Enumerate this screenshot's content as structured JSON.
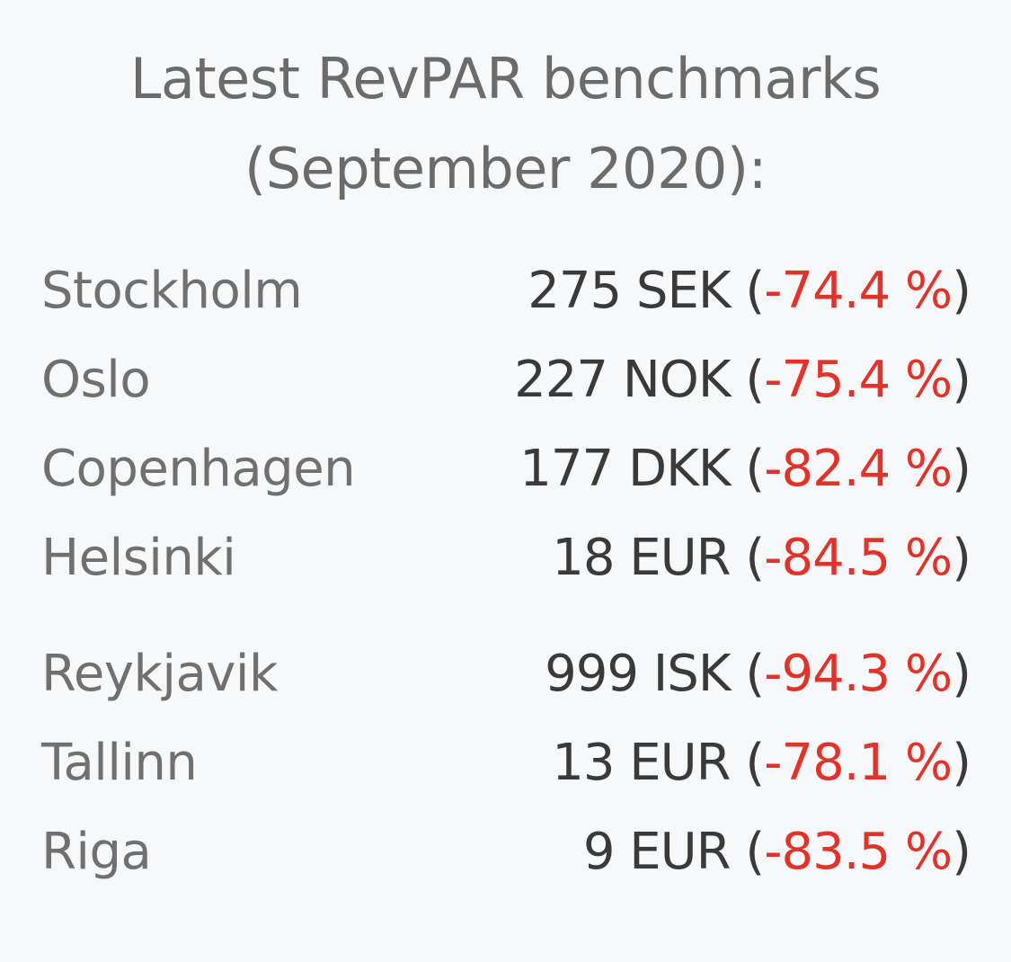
{
  "title": {
    "line1": "Latest RevPAR benchmarks",
    "line2": "(September 2020):"
  },
  "colors": {
    "background": "#f7f8fa",
    "text_dark": "#3a3a3a",
    "text_gray": "#707070",
    "negative": "#e2332b"
  },
  "rows": [
    {
      "city": "Stockholm",
      "amount": "275 SEK",
      "open": "(",
      "change": "-74.4 %",
      "close": ")"
    },
    {
      "city": "Oslo",
      "amount": "227 NOK",
      "open": "(",
      "change": "-75.4 %",
      "close": ")"
    },
    {
      "city": "Copenhagen",
      "amount": "177 DKK",
      "open": "(",
      "change": "-82.4 %",
      "close": ")"
    },
    {
      "city": "Helsinki",
      "amount": "18 EUR",
      "open": "(",
      "change": "-84.5 %",
      "close": ")"
    },
    {
      "city": "Reykjavik",
      "amount": "999 ISK",
      "open": "(",
      "change": "-94.3 %",
      "close": ")"
    },
    {
      "city": "Tallinn",
      "amount": "13 EUR",
      "open": "(",
      "change": "-78.1 %",
      "close": ")"
    },
    {
      "city": "Riga",
      "amount": "9 EUR",
      "open": "(",
      "change": "-83.5 %",
      "close": ")"
    }
  ]
}
